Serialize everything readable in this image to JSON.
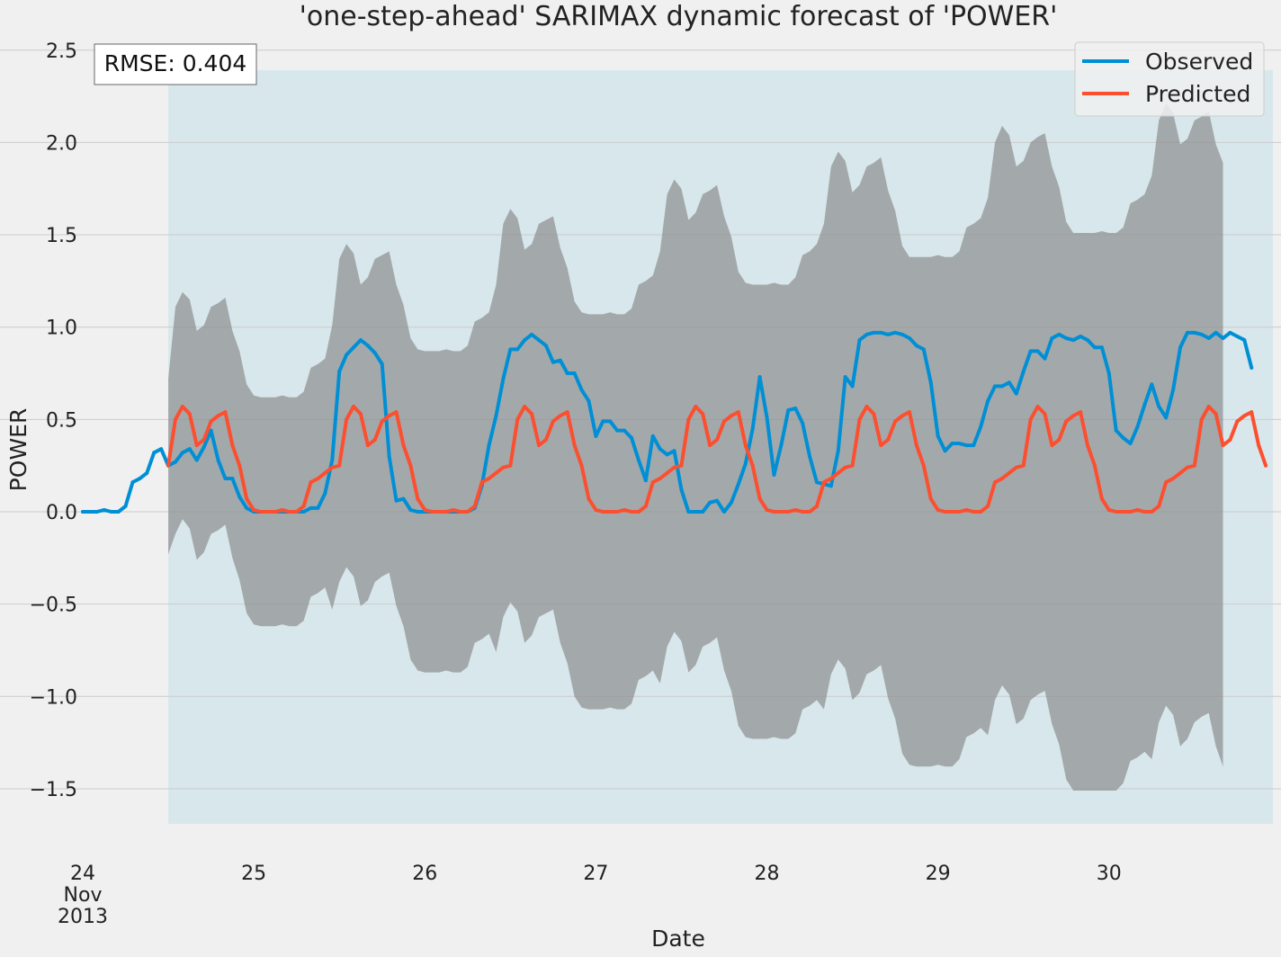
{
  "chart_data": {
    "type": "line",
    "title": "'one-step-ahead' SARIMAX dynamic forecast of 'POWER'",
    "xlabel": "Date",
    "ylabel": "POWER",
    "ylim": [
      -1.7,
      2.5
    ],
    "yticks": [
      -1.5,
      -1.0,
      -0.5,
      0.0,
      0.5,
      1.0,
      1.5,
      2.0,
      2.5
    ],
    "ytick_labels": [
      "−1.5",
      "−1.0",
      "−0.5",
      "0.0",
      "0.5",
      "1.0",
      "1.5",
      "2.0",
      "2.5"
    ],
    "xlim": [
      "2013-11-24 00:00",
      "2013-11-30 23:00"
    ],
    "xticks": [
      {
        "x": "2013-11-24",
        "label": "24",
        "sublabels": [
          "Nov",
          "2013"
        ]
      },
      {
        "x": "2013-11-25",
        "label": "25"
      },
      {
        "x": "2013-11-26",
        "label": "26"
      },
      {
        "x": "2013-11-27",
        "label": "27"
      },
      {
        "x": "2013-11-28",
        "label": "28"
      },
      {
        "x": "2013-11-29",
        "label": "29"
      },
      {
        "x": "2013-11-30",
        "label": "30"
      }
    ],
    "grid": true,
    "legend_position": "top-right",
    "annotation": "RMSE: 0.404",
    "forecast_start": "2013-11-24 12:00",
    "forecast_end": "2013-11-30 23:00",
    "x_step_hours": 1,
    "series": [
      {
        "name": "Observed",
        "color": "#008fd5",
        "start": "2013-11-24 00:00",
        "values": [
          0.0,
          0.0,
          0.0,
          0.01,
          0.0,
          0.0,
          0.03,
          0.16,
          0.18,
          0.21,
          0.32,
          0.34,
          0.25,
          0.27,
          0.32,
          0.34,
          0.28,
          0.35,
          0.44,
          0.28,
          0.18,
          0.18,
          0.08,
          0.02,
          0.0,
          0.0,
          0.0,
          0.0,
          0.0,
          0.0,
          0.0,
          0.0,
          0.02,
          0.02,
          0.1,
          0.28,
          0.76,
          0.85,
          0.89,
          0.93,
          0.9,
          0.86,
          0.8,
          0.3,
          0.06,
          0.07,
          0.01,
          0.0,
          0.0,
          0.0,
          0.0,
          0.0,
          0.0,
          0.0,
          0.0,
          0.02,
          0.14,
          0.36,
          0.52,
          0.72,
          0.88,
          0.88,
          0.93,
          0.96,
          0.93,
          0.9,
          0.81,
          0.82,
          0.75,
          0.75,
          0.66,
          0.6,
          0.41,
          0.49,
          0.49,
          0.44,
          0.44,
          0.4,
          0.28,
          0.17,
          0.41,
          0.34,
          0.31,
          0.33,
          0.12,
          0.0,
          0.0,
          0.0,
          0.05,
          0.06,
          0.0,
          0.05,
          0.15,
          0.26,
          0.45,
          0.73,
          0.51,
          0.2,
          0.36,
          0.55,
          0.56,
          0.48,
          0.3,
          0.16,
          0.15,
          0.14,
          0.33,
          0.73,
          0.68,
          0.93,
          0.96,
          0.97,
          0.97,
          0.96,
          0.97,
          0.96,
          0.94,
          0.9,
          0.88,
          0.7,
          0.41,
          0.33,
          0.37,
          0.37,
          0.36,
          0.36,
          0.46,
          0.6,
          0.68,
          0.68,
          0.7,
          0.64,
          0.76,
          0.87,
          0.87,
          0.83,
          0.94,
          0.96,
          0.94,
          0.93,
          0.95,
          0.93,
          0.89,
          0.89,
          0.75,
          0.44,
          0.4,
          0.37,
          0.46,
          0.58,
          0.69,
          0.57,
          0.51,
          0.66,
          0.89,
          0.97,
          0.97,
          0.96,
          0.94,
          0.97,
          0.94,
          0.97,
          0.95,
          0.93,
          0.78
        ]
      },
      {
        "name": "Predicted",
        "color": "#fc4f30",
        "start": "2013-11-24 12:00",
        "values": [
          0.25,
          0.5,
          0.57,
          0.53,
          0.36,
          0.39,
          0.49,
          0.52,
          0.54,
          0.36,
          0.25,
          0.07,
          0.01,
          0.0,
          0.0,
          0.0,
          0.01,
          0.0,
          0.0,
          0.03,
          0.16,
          0.18,
          0.21,
          0.24,
          0.25,
          0.5,
          0.57,
          0.53,
          0.36,
          0.39,
          0.49,
          0.52,
          0.54,
          0.36,
          0.25,
          0.07,
          0.01,
          0.0,
          0.0,
          0.0,
          0.01,
          0.0,
          0.0,
          0.03,
          0.16,
          0.18,
          0.21,
          0.24,
          0.25,
          0.5,
          0.57,
          0.53,
          0.36,
          0.39,
          0.49,
          0.52,
          0.54,
          0.36,
          0.25,
          0.07,
          0.01,
          0.0,
          0.0,
          0.0,
          0.01,
          0.0,
          0.0,
          0.03,
          0.16,
          0.18,
          0.21,
          0.24,
          0.25,
          0.5,
          0.57,
          0.53,
          0.36,
          0.39,
          0.49,
          0.52,
          0.54,
          0.36,
          0.25,
          0.07,
          0.01,
          0.0,
          0.0,
          0.0,
          0.01,
          0.0,
          0.0,
          0.03,
          0.16,
          0.18,
          0.21,
          0.24,
          0.25,
          0.5,
          0.57,
          0.53,
          0.36,
          0.39,
          0.49,
          0.52,
          0.54,
          0.36,
          0.25,
          0.07,
          0.01,
          0.0,
          0.0,
          0.0,
          0.01,
          0.0,
          0.0,
          0.03,
          0.16,
          0.18,
          0.21,
          0.24,
          0.25,
          0.5,
          0.57,
          0.53,
          0.36,
          0.39,
          0.49,
          0.52,
          0.54,
          0.36,
          0.25,
          0.07,
          0.01,
          0.0,
          0.0,
          0.0,
          0.01,
          0.0,
          0.0,
          0.03,
          0.16,
          0.18,
          0.21,
          0.24,
          0.25,
          0.5,
          0.57,
          0.53,
          0.36,
          0.39,
          0.49,
          0.52,
          0.54,
          0.36,
          0.25
        ]
      }
    ],
    "confidence_interval": {
      "color": "#808080",
      "start": "2013-11-24 12:00",
      "upper": [
        0.72,
        1.11,
        1.19,
        1.15,
        0.98,
        1.01,
        1.11,
        1.13,
        1.16,
        0.98,
        0.87,
        0.69,
        0.63,
        0.62,
        0.62,
        0.62,
        0.63,
        0.62,
        0.62,
        0.65,
        0.78,
        0.8,
        0.83,
        1.01,
        1.37,
        1.45,
        1.4,
        1.23,
        1.27,
        1.37,
        1.39,
        1.41,
        1.23,
        1.12,
        0.94,
        0.88,
        0.87,
        0.87,
        0.87,
        0.88,
        0.87,
        0.87,
        0.9,
        1.03,
        1.05,
        1.08,
        1.23,
        1.56,
        1.64,
        1.59,
        1.42,
        1.45,
        1.56,
        1.58,
        1.6,
        1.43,
        1.32,
        1.14,
        1.08,
        1.07,
        1.07,
        1.07,
        1.08,
        1.07,
        1.07,
        1.1,
        1.23,
        1.25,
        1.28,
        1.41,
        1.72,
        1.8,
        1.75,
        1.58,
        1.62,
        1.72,
        1.74,
        1.77,
        1.6,
        1.49,
        1.3,
        1.24,
        1.23,
        1.23,
        1.23,
        1.24,
        1.23,
        1.23,
        1.27,
        1.39,
        1.41,
        1.45,
        1.56,
        1.87,
        1.95,
        1.9,
        1.73,
        1.77,
        1.87,
        1.89,
        1.92,
        1.74,
        1.63,
        1.44,
        1.38,
        1.38,
        1.38,
        1.38,
        1.39,
        1.38,
        1.38,
        1.41,
        1.54,
        1.56,
        1.59,
        1.7,
        2.0,
        2.09,
        2.04,
        1.87,
        1.9,
        2.0,
        2.03,
        2.05,
        1.87,
        1.76,
        1.57,
        1.51,
        1.51,
        1.51,
        1.51,
        1.52,
        1.51,
        1.51,
        1.54,
        1.67,
        1.69,
        1.72,
        1.82,
        2.12,
        2.21,
        2.16,
        1.99,
        2.02,
        2.12,
        2.14,
        2.17,
        1.99,
        1.89
      ],
      "lower": [
        -0.23,
        -0.12,
        -0.04,
        -0.09,
        -0.26,
        -0.22,
        -0.12,
        -0.1,
        -0.07,
        -0.25,
        -0.37,
        -0.55,
        -0.61,
        -0.62,
        -0.62,
        -0.62,
        -0.61,
        -0.62,
        -0.62,
        -0.59,
        -0.46,
        -0.44,
        -0.41,
        -0.53,
        -0.38,
        -0.3,
        -0.35,
        -0.51,
        -0.48,
        -0.38,
        -0.35,
        -0.33,
        -0.51,
        -0.62,
        -0.8,
        -0.86,
        -0.87,
        -0.87,
        -0.87,
        -0.86,
        -0.87,
        -0.87,
        -0.84,
        -0.71,
        -0.69,
        -0.66,
        -0.76,
        -0.57,
        -0.49,
        -0.54,
        -0.71,
        -0.67,
        -0.57,
        -0.55,
        -0.53,
        -0.71,
        -0.82,
        -1.0,
        -1.06,
        -1.07,
        -1.07,
        -1.07,
        -1.06,
        -1.07,
        -1.07,
        -1.04,
        -0.91,
        -0.89,
        -0.86,
        -0.93,
        -0.73,
        -0.65,
        -0.7,
        -0.87,
        -0.83,
        -0.73,
        -0.71,
        -0.68,
        -0.86,
        -0.97,
        -1.16,
        -1.22,
        -1.23,
        -1.23,
        -1.23,
        -1.22,
        -1.23,
        -1.23,
        -1.2,
        -1.07,
        -1.05,
        -1.02,
        -1.07,
        -0.88,
        -0.8,
        -0.85,
        -1.02,
        -0.98,
        -0.88,
        -0.86,
        -0.83,
        -1.01,
        -1.12,
        -1.31,
        -1.37,
        -1.38,
        -1.38,
        -1.38,
        -1.37,
        -1.38,
        -1.38,
        -1.34,
        -1.22,
        -1.2,
        -1.17,
        -1.21,
        -1.02,
        -0.94,
        -0.99,
        -1.15,
        -1.12,
        -1.02,
        -0.99,
        -0.97,
        -1.15,
        -1.26,
        -1.45,
        -1.51,
        -1.51,
        -1.51,
        -1.51,
        -1.51,
        -1.51,
        -1.51,
        -1.47,
        -1.35,
        -1.33,
        -1.3,
        -1.34,
        -1.14,
        -1.05,
        -1.1,
        -1.27,
        -1.23,
        -1.14,
        -1.11,
        -1.09,
        -1.27,
        -1.38
      ]
    }
  }
}
